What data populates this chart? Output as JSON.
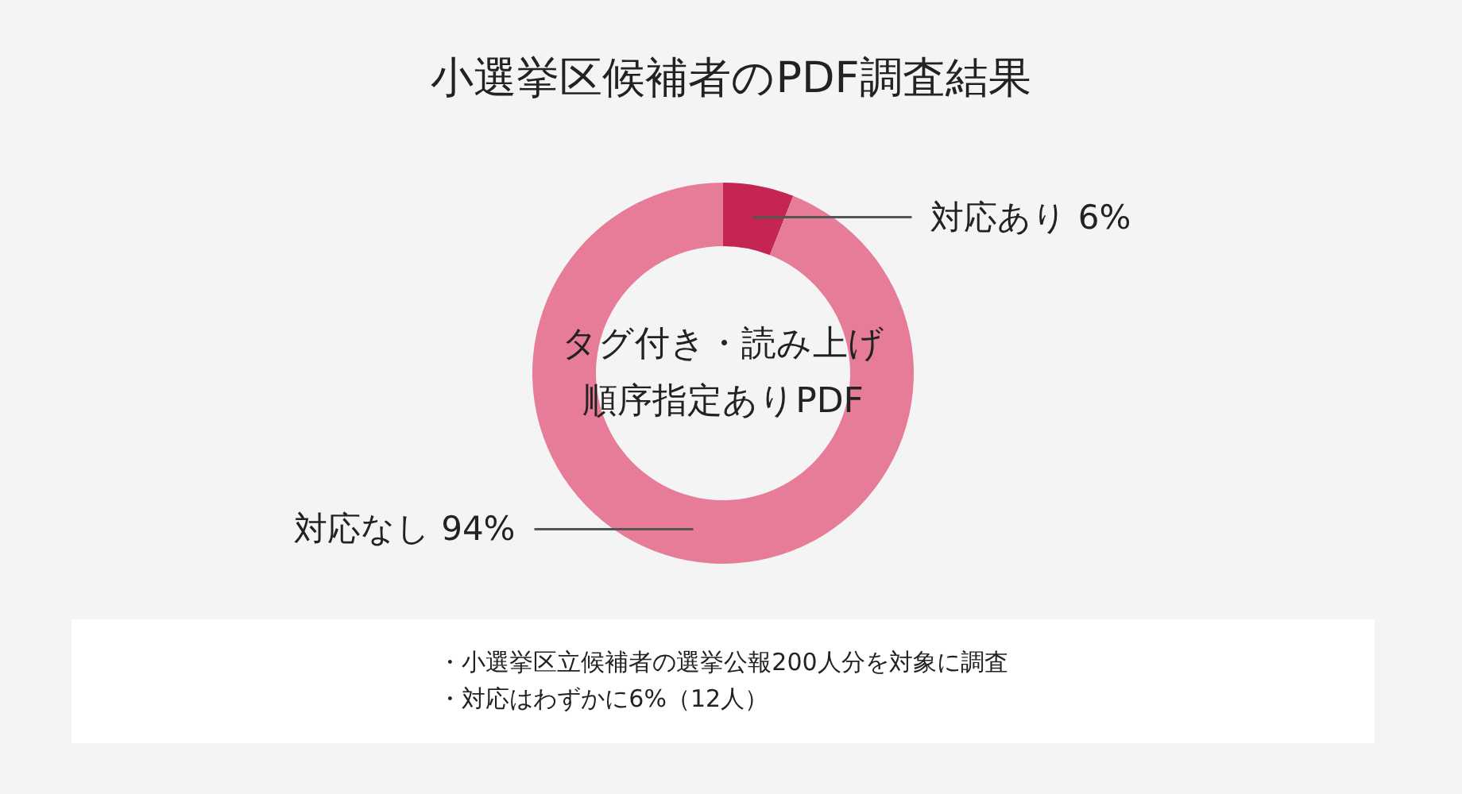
{
  "chart_data": {
    "type": "donut",
    "title": "小選挙区候補者のPDF調査結果",
    "categories": [
      "対応あり",
      "対応なし"
    ],
    "values": [
      6,
      94
    ],
    "value_labels": [
      "6%",
      "94%"
    ],
    "colors": [
      "#c42552",
      "#e67c97"
    ],
    "annotations": [
      "タグ付き・読み上げ順序指定ありPDF",
      "・小選挙区立候補者の選挙公報200人分を対象に調査",
      "・対応はわずかに6%（12人）"
    ]
  }
}
